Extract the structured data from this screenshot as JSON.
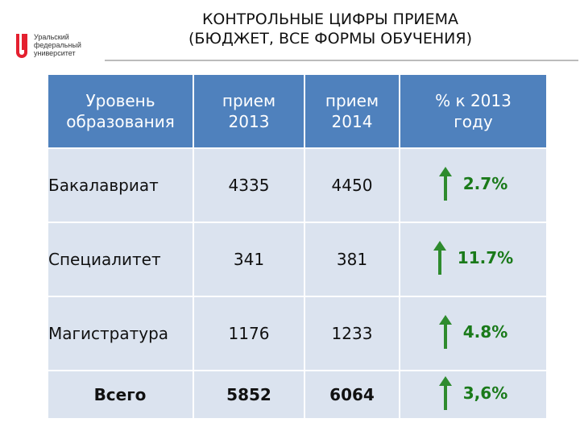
{
  "logo": {
    "lines": [
      "Уральский",
      "федеральный",
      "университет"
    ]
  },
  "title": {
    "line1": "КОНТРОЛЬНЫЕ ЦИФРЫ ПРИЕМА",
    "line2": "(БЮДЖЕТ, ВСЕ ФОРМЫ ОБУЧЕНИЯ)"
  },
  "table": {
    "headers": [
      [
        "Уровень",
        "образования"
      ],
      [
        "прием",
        "2013"
      ],
      [
        "прием",
        "2014"
      ],
      [
        "% к 2013",
        "году"
      ]
    ],
    "rows": [
      {
        "level": "Бакалавриат",
        "y2013": "4335",
        "y2014": "4450",
        "change": "2.7%",
        "trend": "up"
      },
      {
        "level": "Специалитет",
        "y2013": "341",
        "y2014": "381",
        "change": "11.7%",
        "trend": "up"
      },
      {
        "level": "Магистратура",
        "y2013": "1176",
        "y2014": "1233",
        "change": "4.8%",
        "trend": "up"
      }
    ],
    "total": {
      "level": "Всего",
      "y2013": "5852",
      "y2014": "6064",
      "change": "3,6%",
      "trend": "up"
    }
  },
  "colors": {
    "header_bg": "#4f81bd",
    "cell_bg": "#dbe3ef",
    "change_text": "#1a7a1a",
    "arrow": "#2e8b2e",
    "logo_red": "#e4202f"
  },
  "icons": {
    "trend_up": "arrow-up-icon",
    "logo": "urfu-logo-icon"
  }
}
